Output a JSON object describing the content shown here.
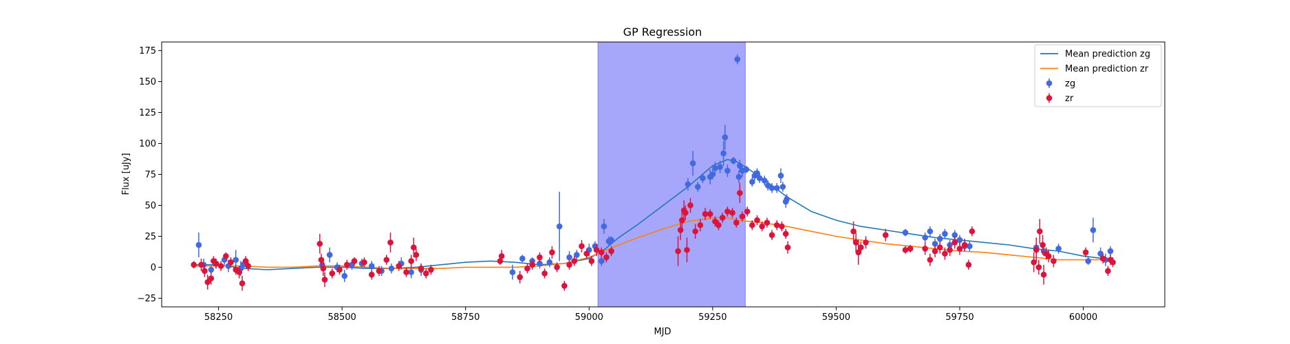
{
  "chart_data": {
    "type": "scatter",
    "title": "GP Regression",
    "xlabel": "MJD",
    "ylabel": "Flux [uJy]",
    "xlim": [
      58135,
      60165
    ],
    "ylim": [
      -32,
      182
    ],
    "xticks": [
      58250,
      58500,
      58750,
      59000,
      59250,
      59500,
      59750,
      60000
    ],
    "yticks": [
      -25,
      0,
      25,
      50,
      75,
      100,
      125,
      150,
      175
    ],
    "grid": false,
    "legend_position": "top-right",
    "shaded_region": {
      "x_start": 59018,
      "x_end": 59316,
      "color": "#a6a6fa"
    },
    "series": [
      {
        "name": "Mean prediction zg",
        "kind": "line",
        "color": "#1f77b4",
        "x": [
          58200,
          58250,
          58300,
          58350,
          58400,
          58450,
          58500,
          58550,
          58600,
          58650,
          58700,
          58750,
          58800,
          58850,
          58900,
          58950,
          59000,
          59030,
          59060,
          59100,
          59150,
          59200,
          59250,
          59280,
          59300,
          59320,
          59350,
          59400,
          59450,
          59500,
          59550,
          59600,
          59650,
          59700,
          59750,
          59800,
          59850,
          59900,
          59950,
          60000,
          60060
        ],
        "y": [
          2,
          2,
          -1,
          -2,
          -1,
          0,
          0,
          -1,
          -1,
          0,
          2,
          4,
          5,
          4,
          2,
          3,
          7,
          14,
          24,
          35,
          50,
          65,
          82,
          87,
          85,
          80,
          72,
          57,
          45,
          38,
          33,
          30,
          27,
          24,
          22,
          20,
          18,
          15,
          13,
          9,
          6
        ]
      },
      {
        "name": "Mean prediction zr",
        "kind": "line",
        "color": "#ff7f0e",
        "x": [
          58200,
          58250,
          58300,
          58350,
          58400,
          58450,
          58500,
          58550,
          58600,
          58650,
          58700,
          58750,
          58800,
          58850,
          58900,
          58950,
          59000,
          59030,
          59060,
          59100,
          59150,
          59200,
          59250,
          59280,
          59300,
          59350,
          59400,
          59450,
          59500,
          59550,
          59600,
          59650,
          59700,
          59750,
          59800,
          59850,
          59900,
          59950,
          60000,
          60060
        ],
        "y": [
          1,
          1,
          1,
          0,
          0,
          1,
          1,
          0,
          -1,
          -1,
          -1,
          0,
          0,
          0,
          1,
          3,
          8,
          13,
          18,
          24,
          31,
          37,
          40,
          40,
          38,
          36,
          33,
          29,
          25,
          22,
          19,
          17,
          15,
          13,
          12,
          10,
          8,
          6,
          6,
          6
        ]
      },
      {
        "name": "zg",
        "kind": "errorbar",
        "color": "#4169e1",
        "points": [
          [
            58210,
            18,
            10
          ],
          [
            58220,
            2,
            5
          ],
          [
            58235,
            -2,
            3
          ],
          [
            58245,
            3,
            4
          ],
          [
            58262,
            6,
            4
          ],
          [
            58270,
            1,
            5
          ],
          [
            58285,
            6,
            8
          ],
          [
            58295,
            -1,
            6
          ],
          [
            58300,
            2,
            4
          ],
          [
            58460,
            2,
            5
          ],
          [
            58475,
            10,
            6
          ],
          [
            58490,
            0,
            4
          ],
          [
            58505,
            -7,
            5
          ],
          [
            58520,
            2,
            4
          ],
          [
            58540,
            3,
            4
          ],
          [
            58560,
            1,
            4
          ],
          [
            58580,
            -3,
            4
          ],
          [
            58600,
            -1,
            4
          ],
          [
            58620,
            3,
            5
          ],
          [
            58640,
            -4,
            5
          ],
          [
            58660,
            -2,
            5
          ],
          [
            58845,
            -4,
            6
          ],
          [
            58865,
            7,
            3
          ],
          [
            58885,
            5,
            3
          ],
          [
            58900,
            3,
            4
          ],
          [
            58920,
            4,
            4
          ],
          [
            58940,
            33,
            28
          ],
          [
            58960,
            8,
            5
          ],
          [
            58975,
            10,
            4
          ],
          [
            59000,
            14,
            5
          ],
          [
            59012,
            17,
            4
          ],
          [
            59025,
            5,
            4
          ],
          [
            59030,
            33,
            6
          ],
          [
            59040,
            21,
            4
          ],
          [
            59045,
            22,
            3
          ],
          [
            59200,
            67,
            5
          ],
          [
            59210,
            84,
            10
          ],
          [
            59220,
            65,
            4
          ],
          [
            59230,
            72,
            4
          ],
          [
            59245,
            73,
            6
          ],
          [
            59250,
            75,
            4
          ],
          [
            59255,
            80,
            5
          ],
          [
            59265,
            81,
            5
          ],
          [
            59272,
            92,
            10
          ],
          [
            59275,
            105,
            10
          ],
          [
            59280,
            78,
            5
          ],
          [
            59292,
            86,
            3
          ],
          [
            59300,
            168,
            4
          ],
          [
            59303,
            73,
            5
          ],
          [
            59305,
            82,
            5
          ],
          [
            59310,
            78,
            5
          ],
          [
            59318,
            79,
            3
          ],
          [
            59330,
            69,
            4
          ],
          [
            59335,
            74,
            4
          ],
          [
            59340,
            76,
            4
          ],
          [
            59345,
            72,
            4
          ],
          [
            59355,
            70,
            4
          ],
          [
            59362,
            66,
            4
          ],
          [
            59370,
            64,
            4
          ],
          [
            59380,
            64,
            4
          ],
          [
            59388,
            74,
            6
          ],
          [
            59392,
            65,
            4
          ],
          [
            59398,
            53,
            5
          ],
          [
            59400,
            55,
            4
          ],
          [
            59640,
            28,
            3
          ],
          [
            59680,
            24,
            4
          ],
          [
            59690,
            29,
            4
          ],
          [
            59700,
            19,
            4
          ],
          [
            59710,
            23,
            4
          ],
          [
            59720,
            27,
            4
          ],
          [
            59730,
            18,
            4
          ],
          [
            59740,
            26,
            4
          ],
          [
            59750,
            22,
            4
          ],
          [
            59760,
            17,
            4
          ],
          [
            59770,
            17,
            4
          ],
          [
            59905,
            16,
            5
          ],
          [
            59920,
            13,
            4
          ],
          [
            59950,
            15,
            4
          ],
          [
            60010,
            5,
            3
          ],
          [
            60020,
            30,
            10
          ],
          [
            60035,
            11,
            5
          ],
          [
            60045,
            6,
            5
          ],
          [
            60055,
            13,
            4
          ]
        ]
      },
      {
        "name": "zr",
        "kind": "errorbar",
        "color": "#dc143c",
        "points": [
          [
            58200,
            2,
            3
          ],
          [
            58215,
            2,
            5
          ],
          [
            58222,
            -3,
            5
          ],
          [
            58228,
            -12,
            6
          ],
          [
            58235,
            -9,
            5
          ],
          [
            58240,
            5,
            4
          ],
          [
            58245,
            3,
            4
          ],
          [
            58255,
            1,
            4
          ],
          [
            58265,
            9,
            3
          ],
          [
            58275,
            4,
            4
          ],
          [
            58285,
            -2,
            4
          ],
          [
            58292,
            -4,
            5
          ],
          [
            58298,
            -13,
            6
          ],
          [
            58305,
            5,
            4
          ],
          [
            58310,
            1,
            4
          ],
          [
            58455,
            19,
            8
          ],
          [
            58458,
            6,
            5
          ],
          [
            58462,
            -1,
            6
          ],
          [
            58465,
            -10,
            6
          ],
          [
            58480,
            -5,
            4
          ],
          [
            58495,
            -2,
            4
          ],
          [
            58510,
            2,
            4
          ],
          [
            58525,
            5,
            3
          ],
          [
            58545,
            4,
            4
          ],
          [
            58560,
            -6,
            4
          ],
          [
            58575,
            -3,
            4
          ],
          [
            58590,
            6,
            4
          ],
          [
            58598,
            20,
            8
          ],
          [
            58615,
            1,
            4
          ],
          [
            58630,
            -4,
            4
          ],
          [
            58640,
            5,
            5
          ],
          [
            58645,
            16,
            8
          ],
          [
            58650,
            10,
            5
          ],
          [
            58660,
            -1,
            4
          ],
          [
            58670,
            -5,
            4
          ],
          [
            58680,
            -2,
            4
          ],
          [
            58820,
            5,
            3
          ],
          [
            58823,
            9,
            5
          ],
          [
            58860,
            -8,
            5
          ],
          [
            58875,
            -1,
            4
          ],
          [
            58885,
            2,
            4
          ],
          [
            58900,
            8,
            4
          ],
          [
            58910,
            -5,
            4
          ],
          [
            58925,
            12,
            5
          ],
          [
            58935,
            0,
            4
          ],
          [
            58950,
            -15,
            4
          ],
          [
            58960,
            2,
            4
          ],
          [
            58970,
            5,
            4
          ],
          [
            58985,
            17,
            5
          ],
          [
            58995,
            11,
            4
          ],
          [
            59005,
            5,
            4
          ],
          [
            59015,
            14,
            5
          ],
          [
            59025,
            12,
            4
          ],
          [
            59035,
            8,
            4
          ],
          [
            59045,
            13,
            4
          ],
          [
            59180,
            13,
            12
          ],
          [
            59185,
            30,
            8
          ],
          [
            59188,
            38,
            8
          ],
          [
            59192,
            46,
            8
          ],
          [
            59195,
            44,
            6
          ],
          [
            59198,
            14,
            10
          ],
          [
            59205,
            50,
            6
          ],
          [
            59215,
            29,
            6
          ],
          [
            59225,
            34,
            5
          ],
          [
            59235,
            43,
            5
          ],
          [
            59245,
            43,
            4
          ],
          [
            59255,
            37,
            4
          ],
          [
            59262,
            34,
            4
          ],
          [
            59270,
            40,
            4
          ],
          [
            59280,
            45,
            4
          ],
          [
            59290,
            44,
            4
          ],
          [
            59298,
            36,
            4
          ],
          [
            59305,
            60,
            8
          ],
          [
            59310,
            41,
            4
          ],
          [
            59320,
            45,
            4
          ],
          [
            59330,
            34,
            4
          ],
          [
            59340,
            38,
            4
          ],
          [
            59350,
            33,
            4
          ],
          [
            59360,
            36,
            4
          ],
          [
            59370,
            26,
            4
          ],
          [
            59380,
            34,
            4
          ],
          [
            59390,
            33,
            4
          ],
          [
            59398,
            27,
            4
          ],
          [
            59402,
            16,
            5
          ],
          [
            59535,
            29,
            8
          ],
          [
            59540,
            20,
            8
          ],
          [
            59545,
            12,
            10
          ],
          [
            59550,
            16,
            5
          ],
          [
            59560,
            20,
            5
          ],
          [
            59600,
            26,
            5
          ],
          [
            59640,
            14,
            3
          ],
          [
            59650,
            15,
            3
          ],
          [
            59680,
            15,
            5
          ],
          [
            59690,
            6,
            5
          ],
          [
            59700,
            13,
            5
          ],
          [
            59710,
            16,
            5
          ],
          [
            59720,
            11,
            5
          ],
          [
            59730,
            14,
            5
          ],
          [
            59740,
            20,
            5
          ],
          [
            59750,
            15,
            5
          ],
          [
            59760,
            18,
            5
          ],
          [
            59768,
            2,
            4
          ],
          [
            59775,
            29,
            4
          ],
          [
            59900,
            4,
            8
          ],
          [
            59905,
            14,
            10
          ],
          [
            59910,
            0,
            6
          ],
          [
            59912,
            29,
            10
          ],
          [
            59918,
            18,
            8
          ],
          [
            59920,
            -6,
            8
          ],
          [
            59925,
            11,
            5
          ],
          [
            59930,
            9,
            5
          ],
          [
            59940,
            5,
            5
          ],
          [
            60005,
            12,
            4
          ],
          [
            60040,
            7,
            4
          ],
          [
            60050,
            -3,
            4
          ],
          [
            60055,
            6,
            4
          ],
          [
            60060,
            4,
            4
          ]
        ]
      }
    ],
    "legend": [
      {
        "label": "Mean prediction zg",
        "marker": "line",
        "color": "#1f77b4"
      },
      {
        "label": "Mean prediction zr",
        "marker": "line",
        "color": "#ff7f0e"
      },
      {
        "label": "zg",
        "marker": "errorbar",
        "color": "#4169e1"
      },
      {
        "label": "zr",
        "marker": "errorbar",
        "color": "#dc143c"
      }
    ]
  }
}
